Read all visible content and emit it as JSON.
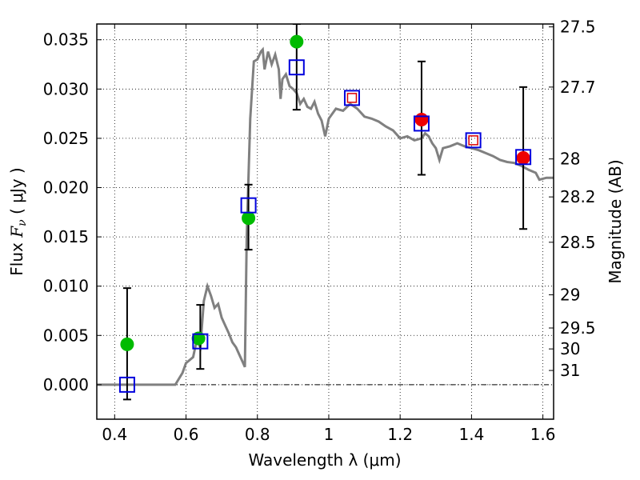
{
  "chart_data": {
    "type": "scatter",
    "xlabel": "Wavelength  λ (μm)",
    "ylabel_text": "Flux  ",
    "ylabel_math_main": "F",
    "ylabel_math_sub": "ν",
    "ylabel_unit": "  ( μJy )",
    "y2label": "Magnitude (AB)",
    "xlim": [
      0.35,
      1.63
    ],
    "ylim": [
      -0.0035,
      0.0366
    ],
    "grid": true,
    "grid_style": "dotted",
    "x_ticks": [
      {
        "value": 0.4,
        "label": "0.4"
      },
      {
        "value": 0.6,
        "label": "0.6"
      },
      {
        "value": 0.8,
        "label": "0.8"
      },
      {
        "value": 1.0,
        "label": "1"
      },
      {
        "value": 1.2,
        "label": "1.2"
      },
      {
        "value": 1.4,
        "label": "1.4"
      },
      {
        "value": 1.6,
        "label": "1.6"
      }
    ],
    "y_ticks": [
      {
        "value": 0.0,
        "label": "0.000"
      },
      {
        "value": 0.005,
        "label": "0.005"
      },
      {
        "value": 0.01,
        "label": "0.010"
      },
      {
        "value": 0.015,
        "label": "0.015"
      },
      {
        "value": 0.02,
        "label": "0.020"
      },
      {
        "value": 0.025,
        "label": "0.025"
      },
      {
        "value": 0.03,
        "label": "0.030"
      },
      {
        "value": 0.035,
        "label": "0.035"
      }
    ],
    "mag_ticks": [
      {
        "value": 27.5,
        "label": "27.5"
      },
      {
        "value": 27.7,
        "label": "27.7"
      },
      {
        "value": 28.0,
        "label": "28"
      },
      {
        "value": 28.2,
        "label": "28.2"
      },
      {
        "value": 28.5,
        "label": "28.5"
      },
      {
        "value": 29.0,
        "label": "29"
      },
      {
        "value": 29.5,
        "label": "29.5"
      },
      {
        "value": 30.0,
        "label": "30"
      },
      {
        "value": 31.0,
        "label": "31"
      }
    ],
    "model_sed": {
      "color": "#808080",
      "points": [
        [
          0.35,
          0.0
        ],
        [
          0.57,
          0.0
        ],
        [
          0.59,
          0.0012
        ],
        [
          0.6,
          0.0022
        ],
        [
          0.61,
          0.0025
        ],
        [
          0.62,
          0.0028
        ],
        [
          0.63,
          0.0045
        ],
        [
          0.64,
          0.0038
        ],
        [
          0.65,
          0.0085
        ],
        [
          0.66,
          0.01
        ],
        [
          0.67,
          0.009
        ],
        [
          0.68,
          0.0078
        ],
        [
          0.69,
          0.0082
        ],
        [
          0.7,
          0.0068
        ],
        [
          0.71,
          0.006
        ],
        [
          0.72,
          0.0052
        ],
        [
          0.73,
          0.0043
        ],
        [
          0.74,
          0.0038
        ],
        [
          0.75,
          0.003
        ],
        [
          0.76,
          0.0022
        ],
        [
          0.765,
          0.0018
        ],
        [
          0.77,
          0.015
        ],
        [
          0.78,
          0.027
        ],
        [
          0.79,
          0.0328
        ],
        [
          0.8,
          0.033
        ],
        [
          0.81,
          0.0338
        ],
        [
          0.815,
          0.034
        ],
        [
          0.82,
          0.032
        ],
        [
          0.83,
          0.0338
        ],
        [
          0.84,
          0.0325
        ],
        [
          0.85,
          0.0335
        ],
        [
          0.86,
          0.032
        ],
        [
          0.865,
          0.029
        ],
        [
          0.87,
          0.031
        ],
        [
          0.88,
          0.0315
        ],
        [
          0.89,
          0.0303
        ],
        [
          0.9,
          0.03
        ],
        [
          0.91,
          0.0296
        ],
        [
          0.92,
          0.0285
        ],
        [
          0.93,
          0.029
        ],
        [
          0.94,
          0.0282
        ],
        [
          0.95,
          0.028
        ],
        [
          0.96,
          0.0287
        ],
        [
          0.97,
          0.0275
        ],
        [
          0.98,
          0.0268
        ],
        [
          0.99,
          0.0252
        ],
        [
          1.0,
          0.027
        ],
        [
          1.01,
          0.0275
        ],
        [
          1.02,
          0.028
        ],
        [
          1.04,
          0.0278
        ],
        [
          1.06,
          0.0285
        ],
        [
          1.08,
          0.028
        ],
        [
          1.1,
          0.0272
        ],
        [
          1.12,
          0.027
        ],
        [
          1.14,
          0.0267
        ],
        [
          1.16,
          0.0262
        ],
        [
          1.18,
          0.0258
        ],
        [
          1.2,
          0.025
        ],
        [
          1.22,
          0.0252
        ],
        [
          1.24,
          0.0248
        ],
        [
          1.26,
          0.025
        ],
        [
          1.27,
          0.0255
        ],
        [
          1.28,
          0.0252
        ],
        [
          1.29,
          0.0245
        ],
        [
          1.3,
          0.024
        ],
        [
          1.31,
          0.0228
        ],
        [
          1.32,
          0.024
        ],
        [
          1.34,
          0.0242
        ],
        [
          1.36,
          0.0245
        ],
        [
          1.38,
          0.0242
        ],
        [
          1.4,
          0.024
        ],
        [
          1.42,
          0.0238
        ],
        [
          1.44,
          0.0235
        ],
        [
          1.46,
          0.0232
        ],
        [
          1.48,
          0.0228
        ],
        [
          1.5,
          0.0226
        ],
        [
          1.52,
          0.0225
        ],
        [
          1.54,
          0.0222
        ],
        [
          1.56,
          0.0218
        ],
        [
          1.58,
          0.0215
        ],
        [
          1.59,
          0.0208
        ],
        [
          1.61,
          0.021
        ],
        [
          1.63,
          0.021
        ]
      ]
    },
    "series": [
      {
        "marker": "circle",
        "color": "#00bb00",
        "points": [
          {
            "x": 0.435,
            "y": 0.0041
          },
          {
            "x": 0.635,
            "y": 0.0047
          },
          {
            "x": 0.775,
            "y": 0.0169
          },
          {
            "x": 0.91,
            "y": 0.0348
          }
        ]
      },
      {
        "marker": "circle",
        "color": "#ee0000",
        "points": [
          {
            "x": 1.26,
            "y": 0.0269
          },
          {
            "x": 1.545,
            "y": 0.023
          }
        ]
      },
      {
        "marker": "open-square",
        "color": "#0000dd",
        "points": [
          {
            "x": 0.435,
            "y": 0.0
          },
          {
            "x": 0.64,
            "y": 0.0044
          },
          {
            "x": 0.775,
            "y": 0.0182
          },
          {
            "x": 0.91,
            "y": 0.0322
          },
          {
            "x": 1.065,
            "y": 0.0291
          },
          {
            "x": 1.26,
            "y": 0.0265
          },
          {
            "x": 1.405,
            "y": 0.0248
          },
          {
            "x": 1.545,
            "y": 0.0231
          }
        ]
      },
      {
        "marker": "small-open-square",
        "color": "#dd0000",
        "points": [
          {
            "x": 1.065,
            "y": 0.0291
          },
          {
            "x": 1.405,
            "y": 0.0248
          }
        ]
      }
    ],
    "error_bars": [
      {
        "x": 0.435,
        "low": -0.0015,
        "high": 0.0098
      },
      {
        "x": 0.64,
        "low": 0.0016,
        "high": 0.0081
      },
      {
        "x": 0.775,
        "low": 0.0137,
        "high": 0.0203
      },
      {
        "x": 0.91,
        "low": 0.0279,
        "high": 0.0366
      },
      {
        "x": 1.26,
        "low": 0.0213,
        "high": 0.0328
      },
      {
        "x": 1.545,
        "low": 0.0158,
        "high": 0.0302
      }
    ]
  }
}
